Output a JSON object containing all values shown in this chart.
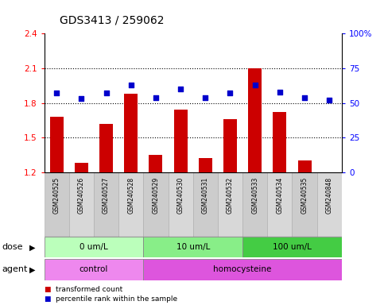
{
  "title": "GDS3413 / 259062",
  "samples": [
    "GSM240525",
    "GSM240526",
    "GSM240527",
    "GSM240528",
    "GSM240529",
    "GSM240530",
    "GSM240531",
    "GSM240532",
    "GSM240533",
    "GSM240534",
    "GSM240535",
    "GSM240848"
  ],
  "bar_values": [
    1.68,
    1.28,
    1.62,
    1.88,
    1.35,
    1.74,
    1.32,
    1.66,
    2.1,
    1.72,
    1.3,
    1.2
  ],
  "dot_values": [
    57,
    53,
    57,
    63,
    54,
    60,
    54,
    57,
    63,
    58,
    54,
    52
  ],
  "bar_color": "#cc0000",
  "dot_color": "#0000cc",
  "ylim_left": [
    1.2,
    2.4
  ],
  "ylim_right": [
    0,
    100
  ],
  "yticks_left": [
    1.2,
    1.5,
    1.8,
    2.1,
    2.4
  ],
  "yticks_right": [
    0,
    25,
    50,
    75,
    100
  ],
  "ytick_labels_left": [
    "1.2",
    "1.5",
    "1.8",
    "2.1",
    "2.4"
  ],
  "ytick_labels_right": [
    "0",
    "25",
    "50",
    "75",
    "100%"
  ],
  "hlines": [
    1.5,
    1.8,
    2.1
  ],
  "dose_groups": [
    {
      "label": "0 um/L",
      "start": 0,
      "end": 4,
      "color": "#bbffbb"
    },
    {
      "label": "10 um/L",
      "start": 4,
      "end": 8,
      "color": "#88ee88"
    },
    {
      "label": "100 um/L",
      "start": 8,
      "end": 12,
      "color": "#44cc44"
    }
  ],
  "agent_groups": [
    {
      "label": "control",
      "start": 0,
      "end": 4,
      "color": "#ee88ee"
    },
    {
      "label": "homocysteine",
      "start": 4,
      "end": 12,
      "color": "#dd55dd"
    }
  ],
  "dose_label": "dose",
  "agent_label": "agent",
  "legend_bar_label": "transformed count",
  "legend_dot_label": "percentile rank within the sample",
  "background_color": "#ffffff",
  "plot_bg_color": "#ffffff",
  "title_fontsize": 10,
  "tick_fontsize": 7.5,
  "label_fontsize": 8
}
